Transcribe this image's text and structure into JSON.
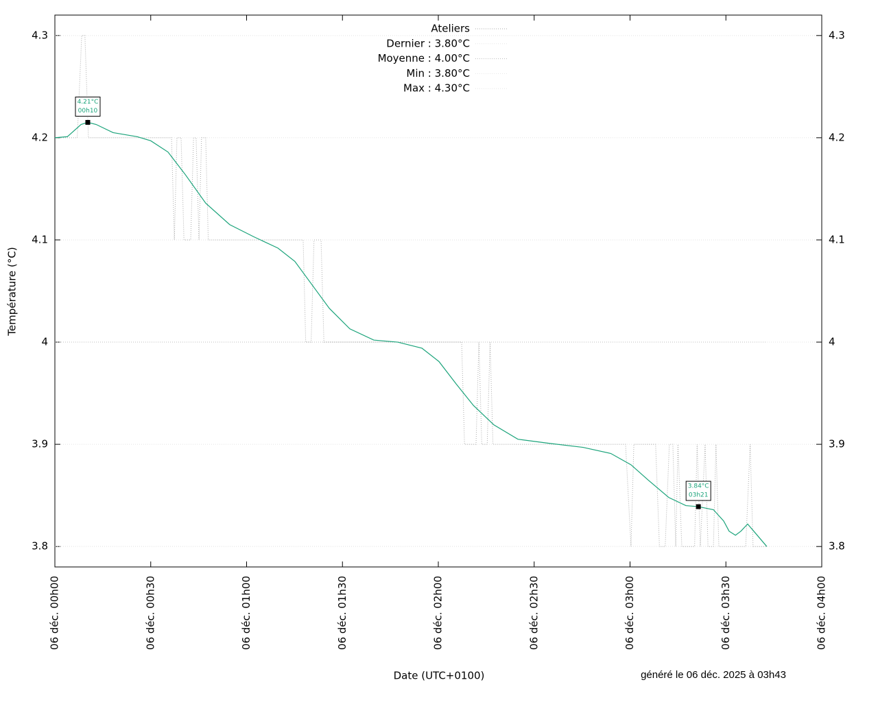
{
  "chart_data": {
    "type": "line",
    "y_label": "Température (°C)",
    "x_label": "Date (UTC+0100)",
    "footer": "généré le 06 déc. 2025 à 03h43",
    "xlim": [
      0,
      240
    ],
    "xticks": [
      {
        "value": 0,
        "label": "06 déc. 00h00"
      },
      {
        "value": 30,
        "label": "06 déc. 00h30"
      },
      {
        "value": 60,
        "label": "06 déc. 01h00"
      },
      {
        "value": 90,
        "label": "06 déc. 01h30"
      },
      {
        "value": 120,
        "label": "06 déc. 02h00"
      },
      {
        "value": 150,
        "label": "06 déc. 02h30"
      },
      {
        "value": 180,
        "label": "06 déc. 03h00"
      },
      {
        "value": 210,
        "label": "06 déc. 03h30"
      },
      {
        "value": 240,
        "label": "06 déc. 04h00"
      }
    ],
    "ylim": [
      3.78,
      4.32
    ],
    "yticks": [
      3.8,
      3.9,
      4,
      4.1,
      4.2,
      4.3
    ],
    "grid": true,
    "series": [
      {
        "name": "Ateliers",
        "color": "#aaaaaa",
        "dash": "1,2",
        "x": [
          0,
          7,
          8.4,
          9.4,
          10.5,
          36.5,
          37.4,
          38.2,
          39.5,
          40.4,
          42.5,
          43.4,
          44.2,
          45.1,
          45.9,
          47.2,
          48,
          77.7,
          78.5,
          80.2,
          81.1,
          83.3,
          84.2,
          127.3,
          128.2,
          131.8,
          132.7,
          133.6,
          135.3,
          136.2,
          137.1,
          178.6,
          180.3,
          181.2,
          188,
          189.2,
          191,
          192.3,
          193.4,
          194.3,
          195,
          196.2,
          200.2,
          201,
          202,
          203.5,
          204.4,
          206.1,
          206.9,
          207.8,
          216.2,
          217.6,
          218.5,
          222.8
        ],
        "values": [
          4.2,
          4.2,
          4.3,
          4.3,
          4.2,
          4.2,
          4.1,
          4.2,
          4.2,
          4.1,
          4.1,
          4.2,
          4.2,
          4.1,
          4.2,
          4.2,
          4.1,
          4.1,
          4.0,
          4.0,
          4.1,
          4.1,
          4.0,
          4.0,
          3.9,
          3.9,
          4.0,
          3.9,
          3.9,
          4.0,
          3.9,
          3.9,
          3.8,
          3.9,
          3.9,
          3.8,
          3.8,
          3.9,
          3.9,
          3.8,
          3.9,
          3.8,
          3.8,
          3.9,
          3.8,
          3.9,
          3.8,
          3.8,
          3.9,
          3.8,
          3.8,
          3.9,
          3.8,
          3.8
        ]
      },
      {
        "color": "#1aa37a",
        "dash": "none",
        "x": [
          0,
          3.9,
          8.2,
          10.3,
          12.9,
          18.2,
          25.8,
          30,
          35.4,
          40.8,
          47.2,
          54.7,
          62.3,
          69.8,
          75.1,
          80.5,
          85.9,
          92.3,
          99.8,
          107.3,
          114.9,
          120.2,
          125.6,
          131,
          137.4,
          144.9,
          154.6,
          165.3,
          174,
          180.3,
          185.7,
          192.1,
          197.5,
          201.4,
          206.1,
          209.3,
          211,
          213,
          214.7,
          216.8,
          219,
          222.8
        ],
        "values": [
          4.2,
          4.201,
          4.213,
          4.215,
          4.213,
          4.205,
          4.201,
          4.197,
          4.186,
          4.164,
          4.136,
          4.115,
          4.103,
          4.092,
          4.079,
          4.056,
          4.033,
          4.013,
          4.002,
          4.0,
          3.994,
          3.981,
          3.959,
          3.938,
          3.919,
          3.905,
          3.901,
          3.897,
          3.891,
          3.88,
          3.865,
          3.848,
          3.84,
          3.839,
          3.836,
          3.825,
          3.815,
          3.811,
          3.815,
          3.822,
          3.814,
          3.8
        ]
      }
    ],
    "stats": [
      {
        "label": "Dernier : 3.80°C",
        "value": 3.8,
        "color": "#e6e6e6"
      },
      {
        "label": "Moyenne : 4.00°C",
        "value": 4.0,
        "color": "#bbbbbb"
      },
      {
        "label": "Min : 3.80°C",
        "value": 3.8,
        "color": "#e6e6e6"
      },
      {
        "label": "Max : 4.30°C",
        "value": 4.3,
        "color": "#e6e6e6"
      }
    ],
    "annotations": [
      {
        "lines": [
          "4.21°C",
          "00h10"
        ],
        "x": 10.3,
        "y": 4.215
      },
      {
        "lines": [
          "3.84°C",
          "03h21"
        ],
        "x": 201.4,
        "y": 3.839
      }
    ]
  }
}
